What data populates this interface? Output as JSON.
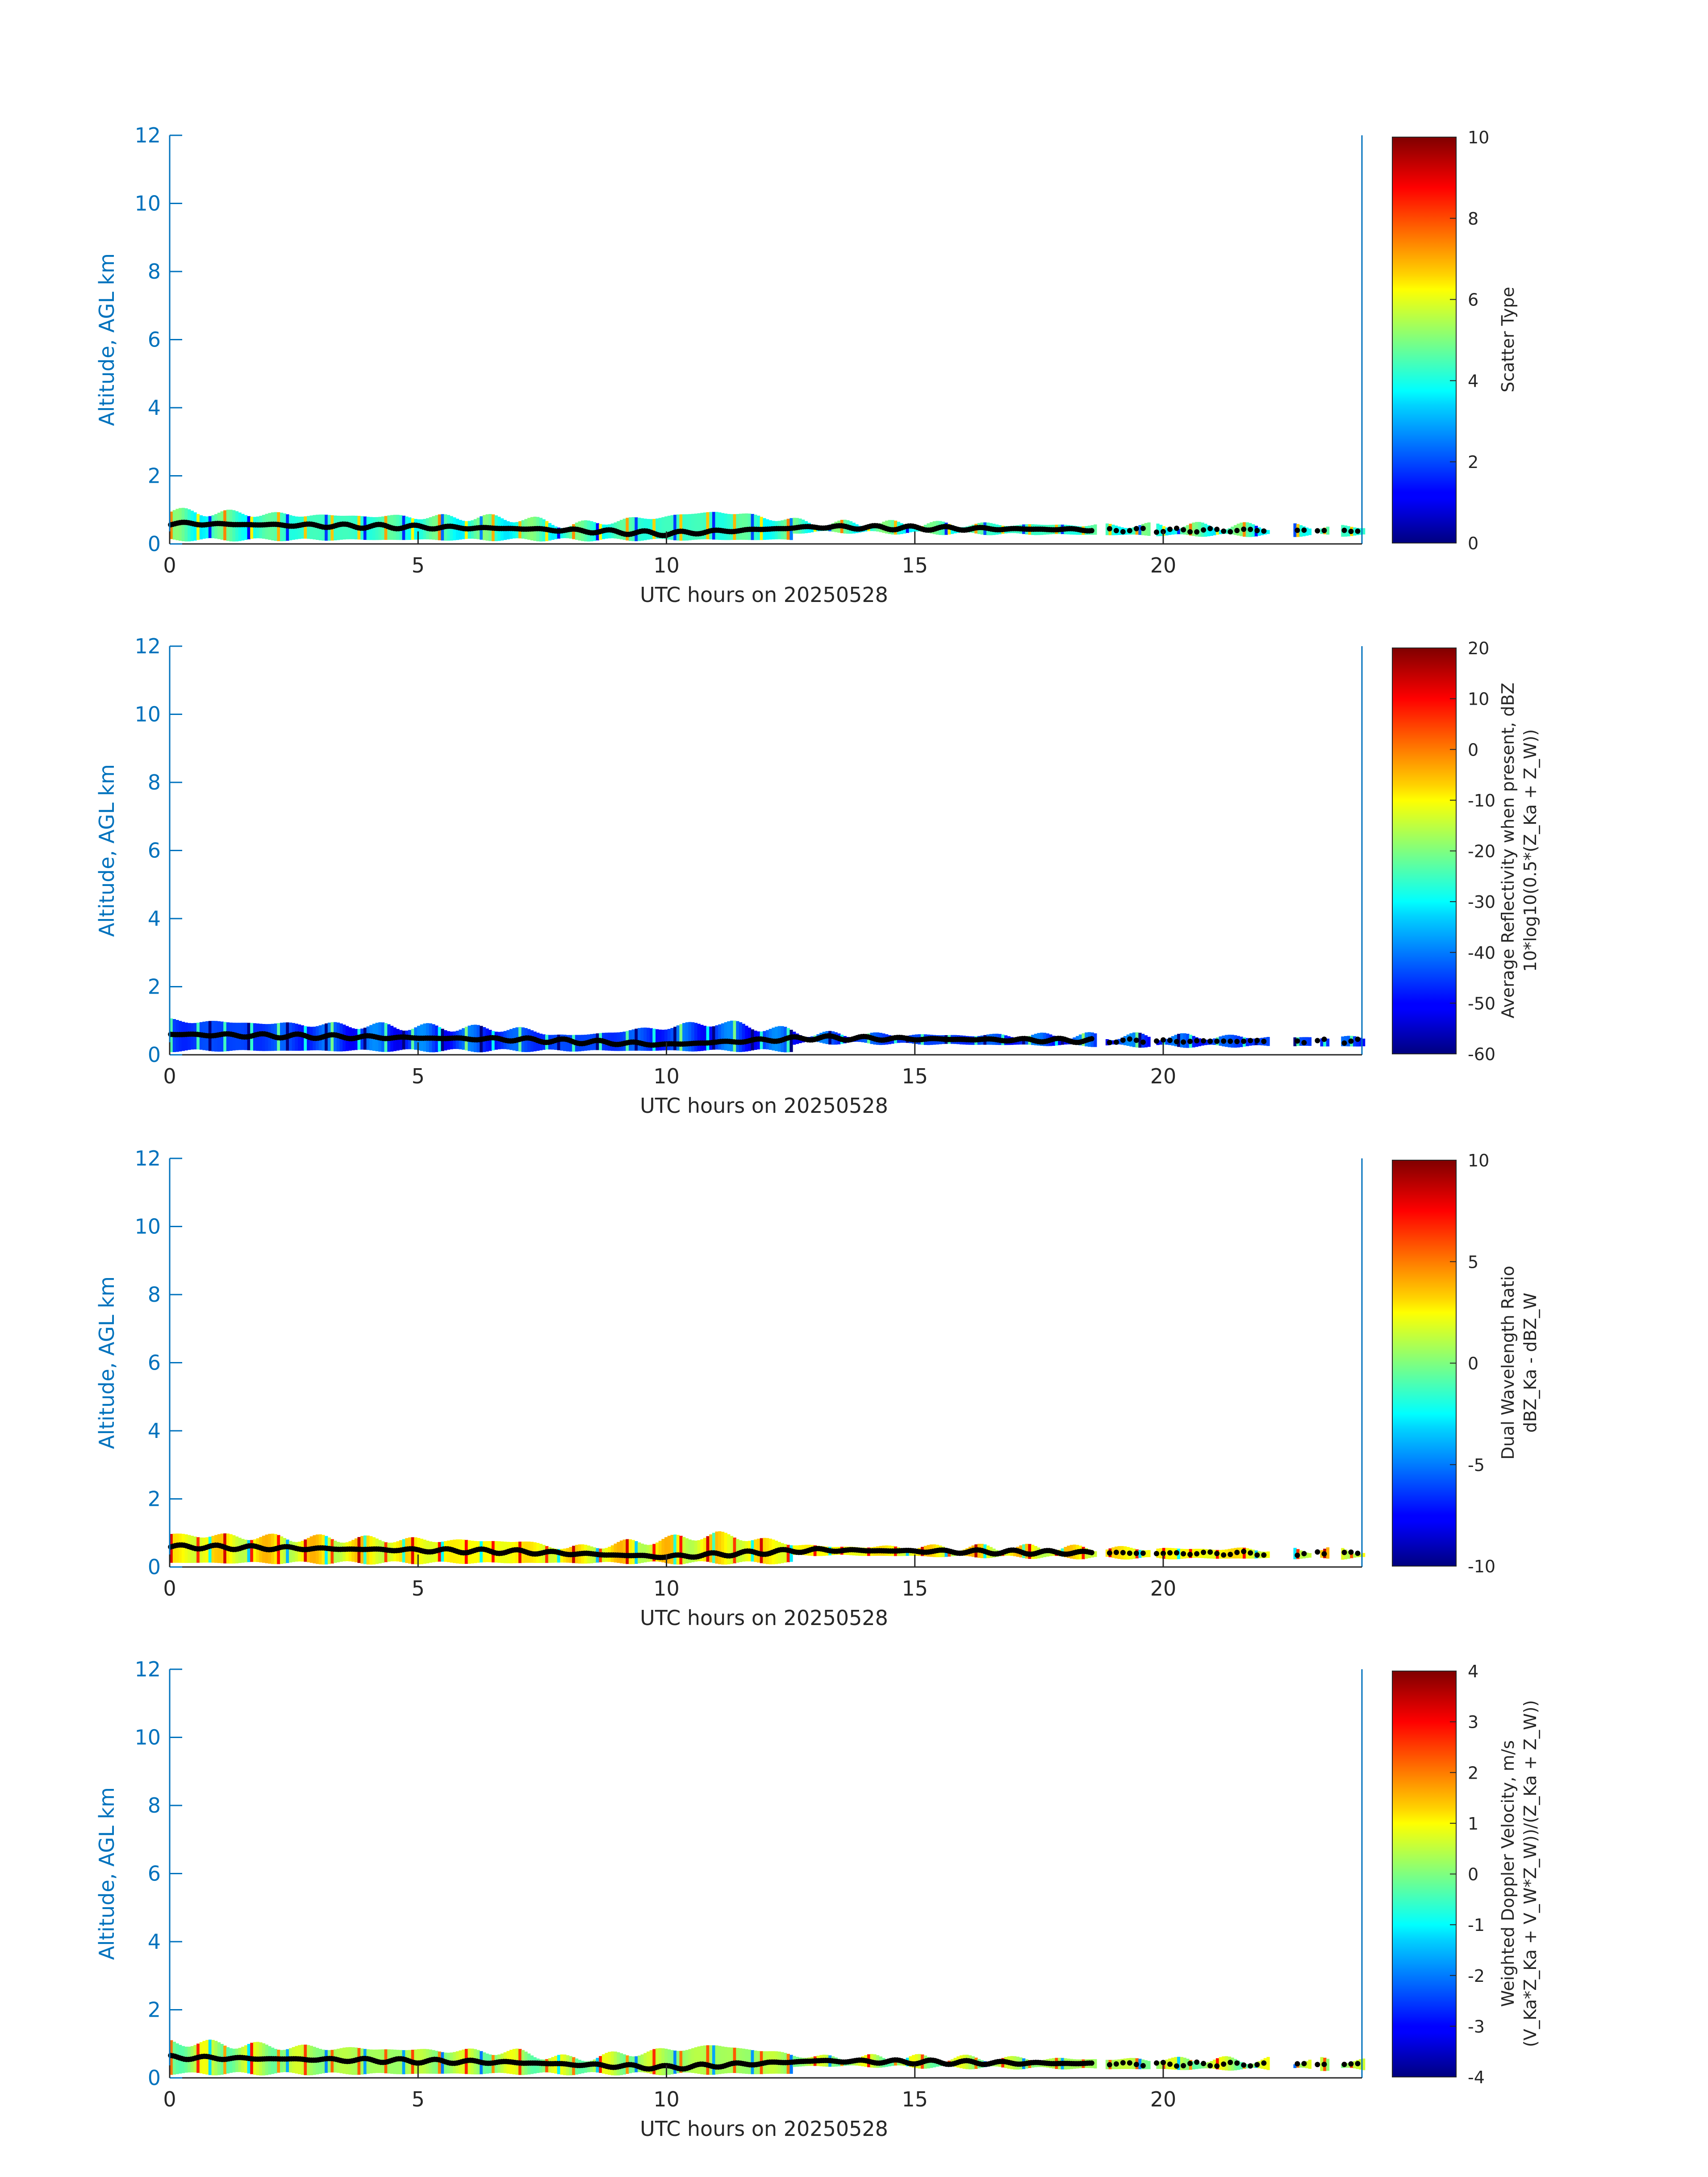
{
  "chart_data": [
    {
      "type": "heatmap",
      "panel": 1,
      "xlabel": "UTC hours on 20250528",
      "ylabel": "Altitude, AGL km",
      "xlim": [
        0,
        24
      ],
      "ylim": [
        0,
        12
      ],
      "xticks": [
        0,
        5,
        10,
        15,
        20
      ],
      "yticks": [
        0,
        2,
        4,
        6,
        8,
        10,
        12
      ],
      "colorbar": {
        "label_lines": [
          "Scatter Type"
        ],
        "range": [
          0,
          10
        ],
        "ticks": [
          0,
          2,
          4,
          6,
          8,
          10
        ],
        "colormap": "jet"
      },
      "field_value": 4.3,
      "field_value_unit": "scatter type",
      "cloud_base_km": [
        0.6,
        0.55,
        0.45,
        0.3,
        0.5,
        0.45,
        0.4,
        0.4
      ],
      "cloud_base_hours": [
        0,
        2.5,
        7,
        10,
        13,
        16,
        20,
        24
      ],
      "echo_top_km": [
        0.95,
        0.85,
        0.75,
        0.55,
        0.95,
        0.6,
        0.55,
        0.5
      ],
      "echo_top_hours": [
        0,
        2.5,
        7,
        8,
        11,
        13,
        18.5,
        24
      ]
    },
    {
      "type": "heatmap",
      "panel": 2,
      "xlabel": "UTC hours on 20250528",
      "ylabel": "Altitude, AGL km",
      "xlim": [
        0,
        24
      ],
      "ylim": [
        0,
        12
      ],
      "xticks": [
        0,
        5,
        10,
        15,
        20
      ],
      "yticks": [
        0,
        2,
        4,
        6,
        8,
        10,
        12
      ],
      "colorbar": {
        "label_lines": [
          "Average Reflectivity when present, dBZ",
          "10*log10(0.5*(Z_Ka + Z_W))"
        ],
        "range": [
          -60,
          20
        ],
        "ticks": [
          -60,
          -50,
          -40,
          -30,
          -20,
          -10,
          0,
          10,
          20
        ],
        "colormap": "jet"
      },
      "field_value": -45,
      "field_value_unit": "dBZ",
      "cloud_base_km": [
        0.6,
        0.55,
        0.45,
        0.3,
        0.5,
        0.45,
        0.4,
        0.4
      ],
      "cloud_base_hours": [
        0,
        2.5,
        7,
        10,
        13,
        16,
        20,
        24
      ],
      "echo_top_km": [
        1.0,
        0.9,
        0.75,
        0.55,
        0.95,
        0.6,
        0.55,
        0.5
      ],
      "echo_top_hours": [
        0,
        2.5,
        7,
        8,
        11,
        13,
        18.5,
        24
      ]
    },
    {
      "type": "heatmap",
      "panel": 3,
      "xlabel": "UTC hours on 20250528",
      "ylabel": "Altitude, AGL km",
      "xlim": [
        0,
        24
      ],
      "ylim": [
        0,
        12
      ],
      "xticks": [
        0,
        5,
        10,
        15,
        20
      ],
      "yticks": [
        0,
        2,
        4,
        6,
        8,
        10,
        12
      ],
      "colorbar": {
        "label_lines": [
          "Dual Wavelength Ratio",
          "dBZ_Ka - dBZ_W"
        ],
        "range": [
          -10,
          10
        ],
        "ticks": [
          -10,
          -5,
          0,
          5,
          10
        ],
        "colormap": "jet"
      },
      "field_value": 2.5,
      "field_value_unit": "dB",
      "cloud_base_km": [
        0.6,
        0.55,
        0.45,
        0.3,
        0.5,
        0.45,
        0.4,
        0.4
      ],
      "cloud_base_hours": [
        0,
        2.5,
        7,
        10,
        13,
        16,
        20,
        24
      ],
      "echo_top_km": [
        0.95,
        0.85,
        0.75,
        0.55,
        0.95,
        0.6,
        0.55,
        0.5
      ],
      "echo_top_hours": [
        0,
        2.5,
        7,
        8,
        11,
        13,
        18.5,
        24
      ]
    },
    {
      "type": "heatmap",
      "panel": 4,
      "xlabel": "UTC hours on 20250528",
      "ylabel": "Altitude, AGL km",
      "xlim": [
        0,
        24
      ],
      "ylim": [
        0,
        12
      ],
      "xticks": [
        0,
        5,
        10,
        15,
        20
      ],
      "yticks": [
        0,
        2,
        4,
        6,
        8,
        10,
        12
      ],
      "colorbar": {
        "label_lines": [
          "Weighted Doppler Velocity, m/s",
          "(V_Ka*Z_Ka + V_W*Z_W))/(Z_Ka + Z_W))"
        ],
        "range": [
          -4,
          4
        ],
        "ticks": [
          -4,
          -3,
          -2,
          -1,
          0,
          1,
          2,
          3,
          4
        ],
        "colormap": "jet"
      },
      "field_value": 0.3,
      "field_value_unit": "m/s",
      "cloud_base_km": [
        0.6,
        0.55,
        0.45,
        0.3,
        0.5,
        0.45,
        0.4,
        0.4
      ],
      "cloud_base_hours": [
        0,
        2.5,
        7,
        10,
        13,
        16,
        20,
        24
      ],
      "echo_top_km": [
        1.05,
        0.9,
        0.75,
        0.55,
        0.95,
        0.6,
        0.55,
        0.5
      ],
      "echo_top_hours": [
        0,
        2.5,
        7,
        8,
        11,
        13,
        18.5,
        24
      ]
    }
  ],
  "colors": {
    "axis": "#0072BD",
    "text": "#262626",
    "cloud_base_marker": "#000000"
  }
}
